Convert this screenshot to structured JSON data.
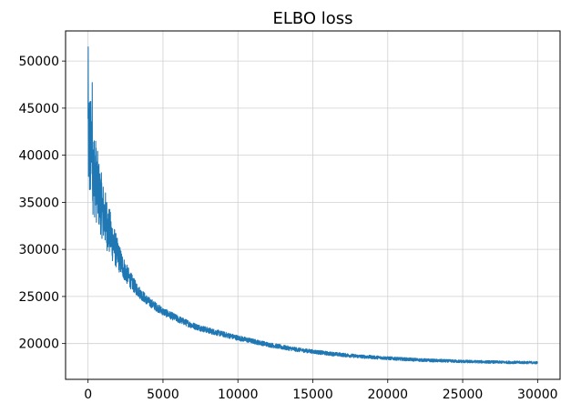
{
  "chart_data": {
    "type": "line",
    "title": "ELBO loss",
    "xlabel": "",
    "ylabel": "",
    "xlim": [
      -1500,
      31500
    ],
    "ylim": [
      16200,
      53200
    ],
    "x_ticks": [
      0,
      5000,
      10000,
      15000,
      20000,
      25000,
      30000
    ],
    "y_ticks": [
      20000,
      25000,
      30000,
      35000,
      40000,
      45000,
      50000
    ],
    "grid": true,
    "line_color": "#1f77b4",
    "series": [
      {
        "x": [
          0,
          100,
          200,
          300,
          500,
          700,
          1000,
          1500,
          2000,
          2500,
          3000,
          3500,
          4000,
          5000,
          6000,
          7000,
          8000,
          9000,
          10000,
          11000,
          12000,
          13000,
          14000,
          15000,
          16000,
          17000,
          18000,
          19000,
          20000,
          21000,
          22000,
          23000,
          24000,
          25000,
          26000,
          27000,
          28000,
          29000,
          30000
        ],
        "values": [
          42000,
          41000,
          40000,
          39000,
          37500,
          36000,
          34000,
          31500,
          29300,
          27600,
          26300,
          25300,
          24500,
          23400,
          22600,
          21900,
          21400,
          21000,
          20600,
          20250,
          19900,
          19600,
          19350,
          19150,
          18950,
          18800,
          18650,
          18550,
          18450,
          18350,
          18270,
          18200,
          18150,
          18100,
          18070,
          18040,
          18010,
          17990,
          17970
        ],
        "noise": [
          6000,
          6000,
          5800,
          5200,
          4500,
          3800,
          3200,
          2500,
          1600,
          1100,
          800,
          600,
          500,
          420,
          380,
          340,
          320,
          300,
          280,
          260,
          250,
          240,
          230,
          220,
          210,
          200,
          190,
          185,
          180,
          175,
          170,
          165,
          160,
          155,
          150,
          148,
          145,
          142,
          140
        ]
      }
    ]
  }
}
